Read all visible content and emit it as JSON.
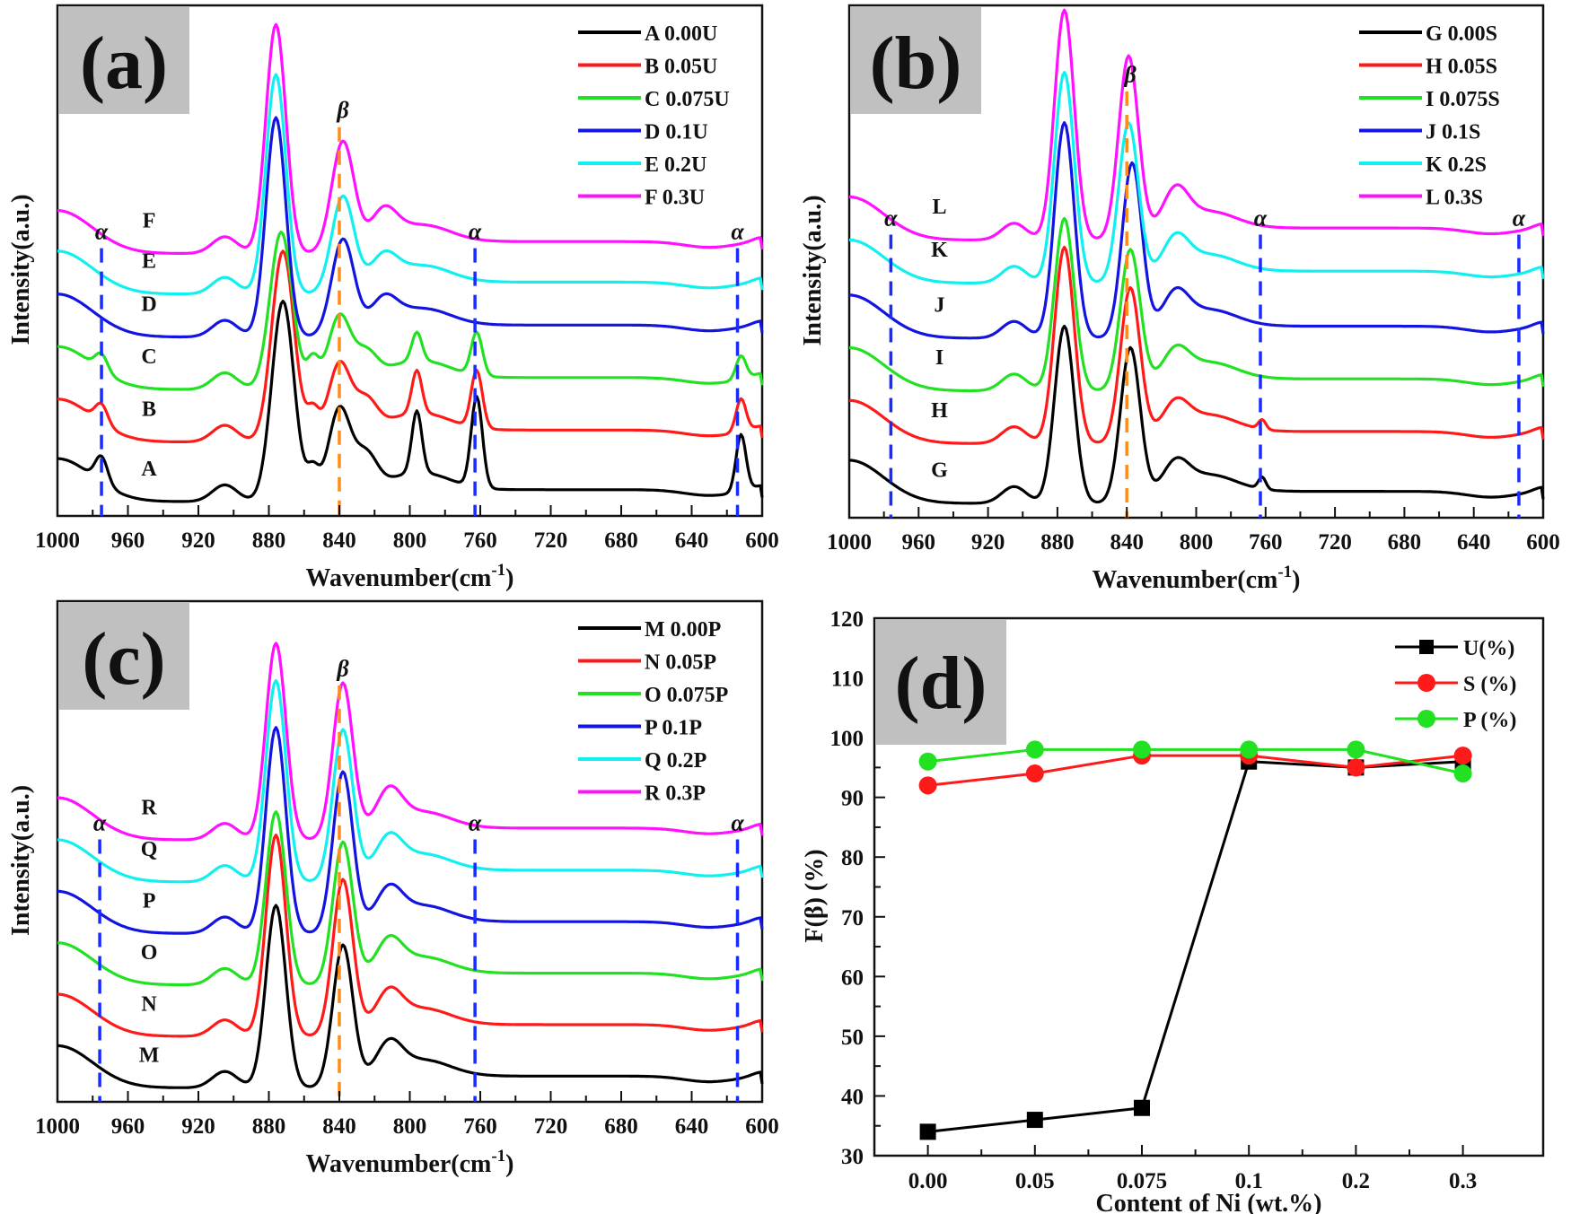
{
  "figure": {
    "colors": {
      "black": "#000000",
      "red": "#ff1a1a",
      "green": "#22e022",
      "blue": "#1414e0",
      "cyan": "#10f0f0",
      "magenta": "#ff10ff",
      "alpha_line": "#1a2bff",
      "beta_line": "#ff8c1a",
      "panel_label_bg": "#c0c0c0"
    }
  },
  "chart_data": [
    {
      "id": "a",
      "type": "line",
      "panel_label": "(a)",
      "xlabel": "Wavenumber(cm",
      "xlabel_sup": "-1",
      "xlabel_close": ")",
      "ylabel": "Intensity(a.u.)",
      "xlim": [
        1000,
        600
      ],
      "x_reversed": true,
      "xticks": [
        1000,
        960,
        920,
        880,
        840,
        800,
        760,
        720,
        680,
        640,
        600
      ],
      "yticks": [],
      "legend_position": "top-right",
      "alpha_marker": "α",
      "beta_marker": "β",
      "alpha_positions": [
        975,
        763,
        614
      ],
      "beta_position": 840,
      "series": [
        {
          "name": "A  0.00U",
          "curve_label": "A",
          "color": "black",
          "offset": 0,
          "peaks": [
            [
              975,
              0.55,
              5
            ],
            [
              872,
              4.2,
              9
            ],
            [
              855,
              0.6,
              5
            ],
            [
              840,
              1.9,
              9
            ],
            [
              825,
              0.8,
              9
            ],
            [
              796,
              1.3,
              4
            ],
            [
              762,
              1.9,
              4.5
            ],
            [
              612,
              1.2,
              4
            ]
          ]
        },
        {
          "name": "B  0.05U",
          "curve_label": "B",
          "color": "red",
          "offset": 1.25,
          "peaks": [
            [
              975,
              0.4,
              5
            ],
            [
              872,
              4.0,
              9
            ],
            [
              855,
              0.6,
              5
            ],
            [
              840,
              1.6,
              9
            ],
            [
              825,
              0.7,
              9
            ],
            [
              796,
              0.9,
              4
            ],
            [
              762,
              1.2,
              4.5
            ],
            [
              612,
              0.7,
              4
            ]
          ]
        },
        {
          "name": "C  0.075U",
          "curve_label": "C",
          "color": "green",
          "offset": 2.35,
          "peaks": [
            [
              975,
              0.35,
              5
            ],
            [
              873,
              3.3,
              9
            ],
            [
              855,
              0.6,
              5
            ],
            [
              840,
              1.5,
              9
            ],
            [
              825,
              0.6,
              9
            ],
            [
              796,
              0.6,
              4
            ],
            [
              762,
              0.9,
              4.5
            ],
            [
              612,
              0.5,
              4
            ]
          ]
        },
        {
          "name": "D  0.1U",
          "curve_label": "D",
          "color": "blue",
          "offset": 3.45,
          "peaks": [
            [
              876,
              4.6,
              8
            ],
            [
              838,
              2.0,
              9
            ],
            [
              815,
              0.5,
              10
            ]
          ]
        },
        {
          "name": "E  0.2U",
          "curve_label": "E",
          "color": "cyan",
          "offset": 4.35,
          "peaks": [
            [
              876,
              4.6,
              8
            ],
            [
              838,
              2.0,
              9
            ],
            [
              815,
              0.5,
              10
            ]
          ]
        },
        {
          "name": "F  0.3U",
          "curve_label": "F",
          "color": "magenta",
          "offset": 5.2,
          "peaks": [
            [
              876,
              4.8,
              8
            ],
            [
              838,
              2.3,
              9
            ],
            [
              815,
              0.6,
              10
            ]
          ]
        }
      ]
    },
    {
      "id": "b",
      "type": "line",
      "panel_label": "(b)",
      "xlabel": "Wavenumber(cm",
      "xlabel_sup": "-1",
      "xlabel_close": ")",
      "ylabel": "Intensity(a.u.)",
      "xlim": [
        1000,
        600
      ],
      "x_reversed": true,
      "xticks": [
        1000,
        960,
        920,
        880,
        840,
        800,
        760,
        720,
        680,
        640,
        600
      ],
      "yticks": [],
      "legend_position": "top-right",
      "alpha_marker": "α",
      "beta_marker": "β",
      "alpha_positions": [
        976,
        763,
        614
      ],
      "beta_position": 840,
      "series": [
        {
          "name": "G  0.00S",
          "curve_label": "G",
          "color": "black",
          "offset": 0,
          "peaks": [
            [
              876,
              3.7,
              8
            ],
            [
              838,
              3.2,
              8
            ],
            [
              812,
              0.5,
              10
            ],
            [
              762,
              0.25,
              3
            ]
          ]
        },
        {
          "name": "H  0.05S",
          "curve_label": "H",
          "color": "red",
          "offset": 1.25,
          "peaks": [
            [
              876,
              4.1,
              8
            ],
            [
              838,
              3.2,
              8
            ],
            [
              812,
              0.5,
              10
            ],
            [
              762,
              0.2,
              3
            ]
          ]
        },
        {
          "name": "I  0.075S",
          "curve_label": "I",
          "color": "green",
          "offset": 2.35,
          "peaks": [
            [
              876,
              3.6,
              8
            ],
            [
              838,
              2.9,
              8
            ],
            [
              812,
              0.5,
              10
            ]
          ]
        },
        {
          "name": "J  0.1S",
          "curve_label": "J",
          "color": "blue",
          "offset": 3.45,
          "peaks": [
            [
              876,
              4.5,
              8
            ],
            [
              837,
              3.6,
              8
            ],
            [
              812,
              0.6,
              10
            ]
          ]
        },
        {
          "name": "K  0.2S",
          "curve_label": "K",
          "color": "cyan",
          "offset": 4.6,
          "peaks": [
            [
              876,
              4.4,
              8
            ],
            [
              839,
              3.3,
              8
            ],
            [
              812,
              0.6,
              10
            ]
          ]
        },
        {
          "name": "L  0.3S",
          "curve_label": "L",
          "color": "magenta",
          "offset": 5.5,
          "peaks": [
            [
              876,
              4.8,
              8
            ],
            [
              839,
              3.8,
              8
            ],
            [
              812,
              0.7,
              10
            ]
          ]
        }
      ]
    },
    {
      "id": "c",
      "type": "line",
      "panel_label": "(c)",
      "xlabel": "Wavenumber(cm",
      "xlabel_sup": "-1",
      "xlabel_close": ")",
      "ylabel": "Intensity(a.u.)",
      "xlim": [
        1000,
        600
      ],
      "x_reversed": true,
      "xticks": [
        1000,
        960,
        920,
        880,
        840,
        800,
        760,
        720,
        680,
        640,
        600
      ],
      "yticks": [],
      "legend_position": "top-right",
      "alpha_marker": "α",
      "beta_marker": "β",
      "alpha_positions": [
        976,
        763,
        614
      ],
      "beta_position": 840,
      "series": [
        {
          "name": "M  0.00P",
          "curve_label": "M",
          "color": "black",
          "offset": 0,
          "peaks": [
            [
              876,
              3.9,
              8
            ],
            [
              838,
              3.0,
              8
            ],
            [
              812,
              0.6,
              10
            ]
          ]
        },
        {
          "name": "N  0.05P",
          "curve_label": "N",
          "color": "red",
          "offset": 1.1,
          "peaks": [
            [
              876,
              4.3,
              8
            ],
            [
              838,
              3.3,
              8
            ],
            [
              812,
              0.6,
              10
            ]
          ]
        },
        {
          "name": "O  0.075P",
          "curve_label": "O",
          "color": "green",
          "offset": 2.2,
          "peaks": [
            [
              876,
              3.7,
              8
            ],
            [
              838,
              3.0,
              8
            ],
            [
              812,
              0.6,
              10
            ]
          ]
        },
        {
          "name": "P  0.1P",
          "curve_label": "P",
          "color": "blue",
          "offset": 3.3,
          "peaks": [
            [
              876,
              4.4,
              8
            ],
            [
              838,
              3.4,
              8
            ],
            [
              812,
              0.6,
              10
            ]
          ]
        },
        {
          "name": "Q  0.2P",
          "curve_label": "Q",
          "color": "cyan",
          "offset": 4.4,
          "peaks": [
            [
              876,
              4.3,
              8
            ],
            [
              838,
              3.2,
              8
            ],
            [
              812,
              0.6,
              10
            ]
          ]
        },
        {
          "name": "R  0.3P",
          "curve_label": "R",
          "color": "magenta",
          "offset": 5.3,
          "peaks": [
            [
              876,
              4.2,
              8
            ],
            [
              838,
              3.3,
              8
            ],
            [
              812,
              0.7,
              10
            ]
          ]
        }
      ]
    },
    {
      "id": "d",
      "type": "line",
      "panel_label": "(d)",
      "xlabel": "Content of Ni (wt.%)",
      "ylabel": "F(β) (%)",
      "categories": [
        "0.00",
        "0.05",
        "0.075",
        "0.1",
        "0.2",
        "0.3"
      ],
      "ylim": [
        30,
        120
      ],
      "yticks": [
        30,
        40,
        50,
        60,
        70,
        80,
        90,
        100,
        110,
        120
      ],
      "legend_position": "top-right",
      "series": [
        {
          "name": "U(%)",
          "color": "black",
          "marker": "square",
          "values": [
            34,
            36,
            38,
            96,
            95,
            96
          ]
        },
        {
          "name": "S (%)",
          "color": "red",
          "marker": "circle",
          "values": [
            92,
            94,
            97,
            97,
            95,
            97
          ]
        },
        {
          "name": "P (%)",
          "color": "green",
          "marker": "circle",
          "values": [
            96,
            98,
            98,
            98,
            98,
            94
          ]
        }
      ]
    }
  ]
}
